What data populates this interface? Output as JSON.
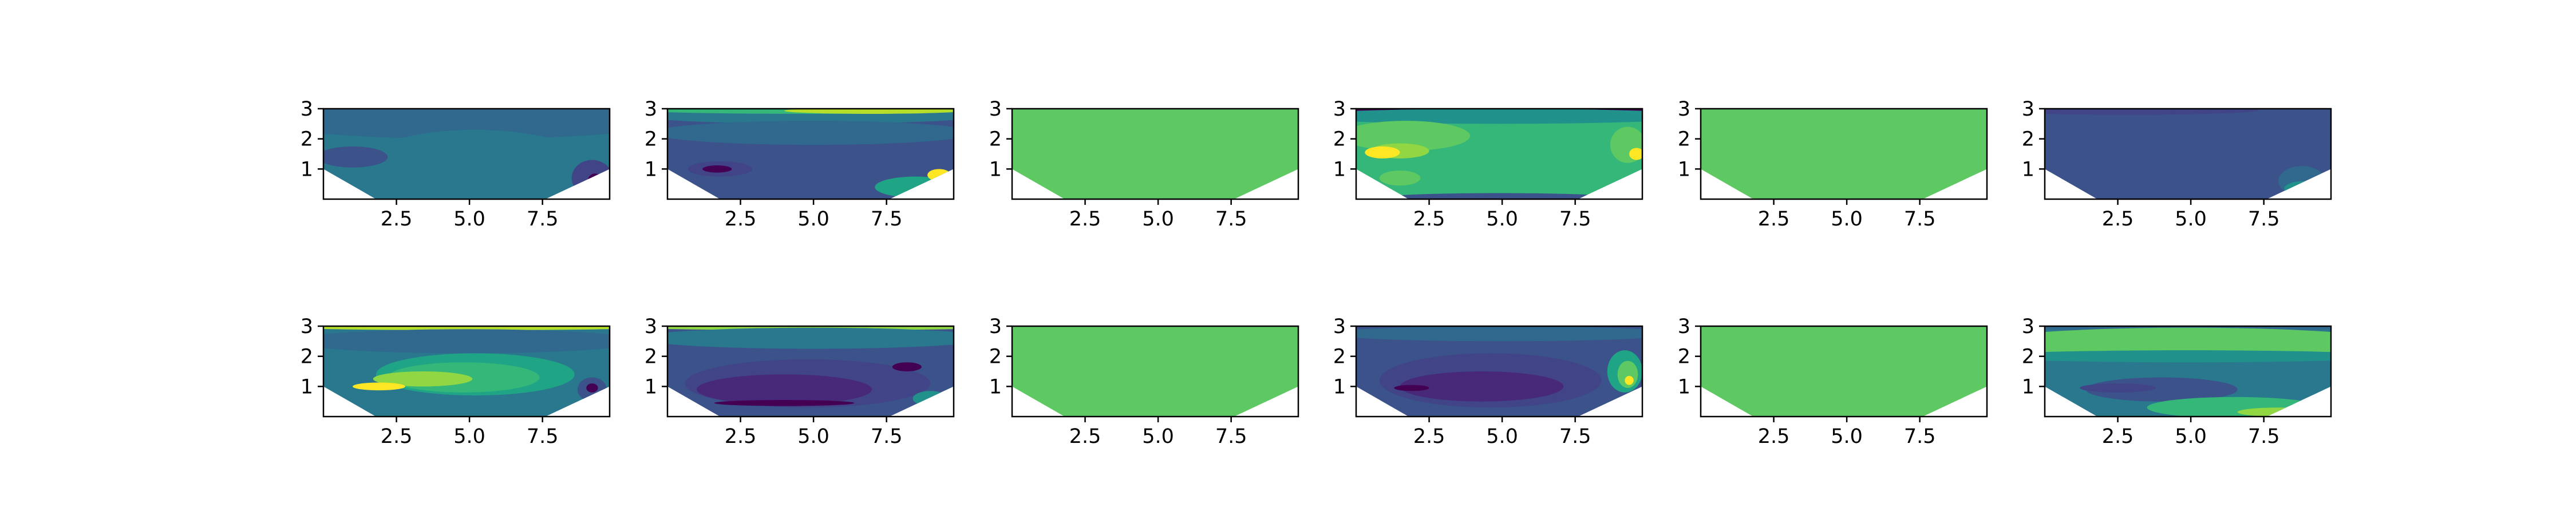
{
  "figure": {
    "layout": "2 rows x 6 columns grid of filled contour plots",
    "colormap": "viridis",
    "background": "#ffffff"
  },
  "chart_data": [
    {
      "type": "heatmap",
      "subtype": "filled-contour",
      "panel": "row1-col1",
      "xlim": [
        0,
        9.8
      ],
      "ylim": [
        0,
        3
      ],
      "xticks": [
        "2.5",
        "5.0",
        "7.5"
      ],
      "yticks": [
        "1",
        "2",
        "3"
      ],
      "boundary": [
        [
          0,
          1
        ],
        [
          1.8,
          0
        ],
        [
          7.6,
          0
        ],
        [
          9.8,
          1
        ]
      ],
      "dominant_color": "#2a788e",
      "accent_color": "#414487",
      "scheme": "mostly-teal"
    },
    {
      "type": "heatmap",
      "subtype": "filled-contour",
      "panel": "row1-col2",
      "xlim": [
        0,
        9.8
      ],
      "ylim": [
        0,
        3
      ],
      "xticks": [
        "2.5",
        "5.0",
        "7.5"
      ],
      "yticks": [
        "1",
        "2",
        "3"
      ],
      "boundary": [
        [
          0,
          1
        ],
        [
          1.8,
          0
        ],
        [
          7.6,
          0
        ],
        [
          9.8,
          1
        ]
      ],
      "dominant_color": "#3b528b",
      "accent_color": "#b5de2b",
      "scheme": "blue-with-yellow-top"
    },
    {
      "type": "heatmap",
      "subtype": "filled-contour",
      "panel": "row1-col3",
      "xlim": [
        0,
        9.8
      ],
      "ylim": [
        0,
        3
      ],
      "xticks": [
        "2.5",
        "5.0",
        "7.5"
      ],
      "yticks": [
        "1",
        "2",
        "3"
      ],
      "boundary": [
        [
          0,
          1
        ],
        [
          1.8,
          0
        ],
        [
          7.6,
          0
        ],
        [
          9.8,
          1
        ]
      ],
      "dominant_color": "#5ec962",
      "accent_color": "#5ec962",
      "scheme": "uniform"
    },
    {
      "type": "heatmap",
      "subtype": "filled-contour",
      "panel": "row1-col4",
      "xlim": [
        0,
        9.8
      ],
      "ylim": [
        0,
        3
      ],
      "xticks": [
        "2.5",
        "5.0",
        "7.5"
      ],
      "yticks": [
        "1",
        "2",
        "3"
      ],
      "boundary": [
        [
          0,
          1
        ],
        [
          1.8,
          0
        ],
        [
          7.6,
          0
        ],
        [
          9.8,
          1
        ]
      ],
      "dominant_color": "#35b779",
      "accent_color": "#fde725",
      "scheme": "green-with-yellow-left"
    },
    {
      "type": "heatmap",
      "subtype": "filled-contour",
      "panel": "row1-col5",
      "xlim": [
        0,
        9.8
      ],
      "ylim": [
        0,
        3
      ],
      "xticks": [
        "2.5",
        "5.0",
        "7.5"
      ],
      "yticks": [
        "1",
        "2",
        "3"
      ],
      "boundary": [
        [
          0,
          1
        ],
        [
          1.8,
          0
        ],
        [
          7.6,
          0
        ],
        [
          9.8,
          1
        ]
      ],
      "dominant_color": "#5ec962",
      "accent_color": "#5ec962",
      "scheme": "uniform"
    },
    {
      "type": "heatmap",
      "subtype": "filled-contour",
      "panel": "row1-col6",
      "xlim": [
        0,
        9.8
      ],
      "ylim": [
        0,
        3
      ],
      "xticks": [
        "2.5",
        "5.0",
        "7.5"
      ],
      "yticks": [
        "1",
        "2",
        "3"
      ],
      "boundary": [
        [
          0,
          1
        ],
        [
          1.8,
          0
        ],
        [
          7.6,
          0
        ],
        [
          9.8,
          1
        ]
      ],
      "dominant_color": "#3b528b",
      "accent_color": "#35b779",
      "scheme": "mostly-blue"
    },
    {
      "type": "heatmap",
      "subtype": "filled-contour",
      "panel": "row2-col1",
      "xlim": [
        0,
        9.8
      ],
      "ylim": [
        0,
        3
      ],
      "xticks": [
        "2.5",
        "5.0",
        "7.5"
      ],
      "yticks": [
        "1",
        "2",
        "3"
      ],
      "boundary": [
        [
          0,
          1
        ],
        [
          1.8,
          0
        ],
        [
          7.6,
          0
        ],
        [
          9.8,
          1
        ]
      ],
      "dominant_color": "#2a788e",
      "accent_color": "#fde725",
      "scheme": "teal-with-green-center"
    },
    {
      "type": "heatmap",
      "subtype": "filled-contour",
      "panel": "row2-col2",
      "xlim": [
        0,
        9.8
      ],
      "ylim": [
        0,
        3
      ],
      "xticks": [
        "2.5",
        "5.0",
        "7.5"
      ],
      "yticks": [
        "1",
        "2",
        "3"
      ],
      "boundary": [
        [
          0,
          1
        ],
        [
          1.8,
          0
        ],
        [
          7.6,
          0
        ],
        [
          9.8,
          1
        ]
      ],
      "dominant_color": "#3b528b",
      "accent_color": "#440154",
      "scheme": "blue-purple-center"
    },
    {
      "type": "heatmap",
      "subtype": "filled-contour",
      "panel": "row2-col3",
      "xlim": [
        0,
        9.8
      ],
      "ylim": [
        0,
        3
      ],
      "xticks": [
        "2.5",
        "5.0",
        "7.5"
      ],
      "yticks": [
        "1",
        "2",
        "3"
      ],
      "boundary": [
        [
          0,
          1
        ],
        [
          1.8,
          0
        ],
        [
          7.6,
          0
        ],
        [
          9.8,
          1
        ]
      ],
      "dominant_color": "#5ec962",
      "accent_color": "#5ec962",
      "scheme": "uniform"
    },
    {
      "type": "heatmap",
      "subtype": "filled-contour",
      "panel": "row2-col4",
      "xlim": [
        0,
        9.8
      ],
      "ylim": [
        0,
        3
      ],
      "xticks": [
        "2.5",
        "5.0",
        "7.5"
      ],
      "yticks": [
        "1",
        "2",
        "3"
      ],
      "boundary": [
        [
          0,
          1
        ],
        [
          1.8,
          0
        ],
        [
          7.6,
          0
        ],
        [
          9.8,
          1
        ]
      ],
      "dominant_color": "#3b528b",
      "accent_color": "#440154",
      "scheme": "blue-purple-center-green-right"
    },
    {
      "type": "heatmap",
      "subtype": "filled-contour",
      "panel": "row2-col5",
      "xlim": [
        0,
        9.8
      ],
      "ylim": [
        0,
        3
      ],
      "xticks": [
        "2.5",
        "5.0",
        "7.5"
      ],
      "yticks": [
        "1",
        "2",
        "3"
      ],
      "boundary": [
        [
          0,
          1
        ],
        [
          1.8,
          0
        ],
        [
          7.6,
          0
        ],
        [
          9.8,
          1
        ]
      ],
      "dominant_color": "#5ec962",
      "accent_color": "#5ec962",
      "scheme": "uniform"
    },
    {
      "type": "heatmap",
      "subtype": "filled-contour",
      "panel": "row2-col6",
      "xlim": [
        0,
        9.8
      ],
      "ylim": [
        0,
        3
      ],
      "xticks": [
        "2.5",
        "5.0",
        "7.5"
      ],
      "yticks": [
        "1",
        "2",
        "3"
      ],
      "boundary": [
        [
          0,
          1
        ],
        [
          1.8,
          0
        ],
        [
          7.6,
          0
        ],
        [
          9.8,
          1
        ]
      ],
      "dominant_color": "#2a788e",
      "accent_color": "#5ec962",
      "scheme": "teal-green-bands"
    }
  ]
}
